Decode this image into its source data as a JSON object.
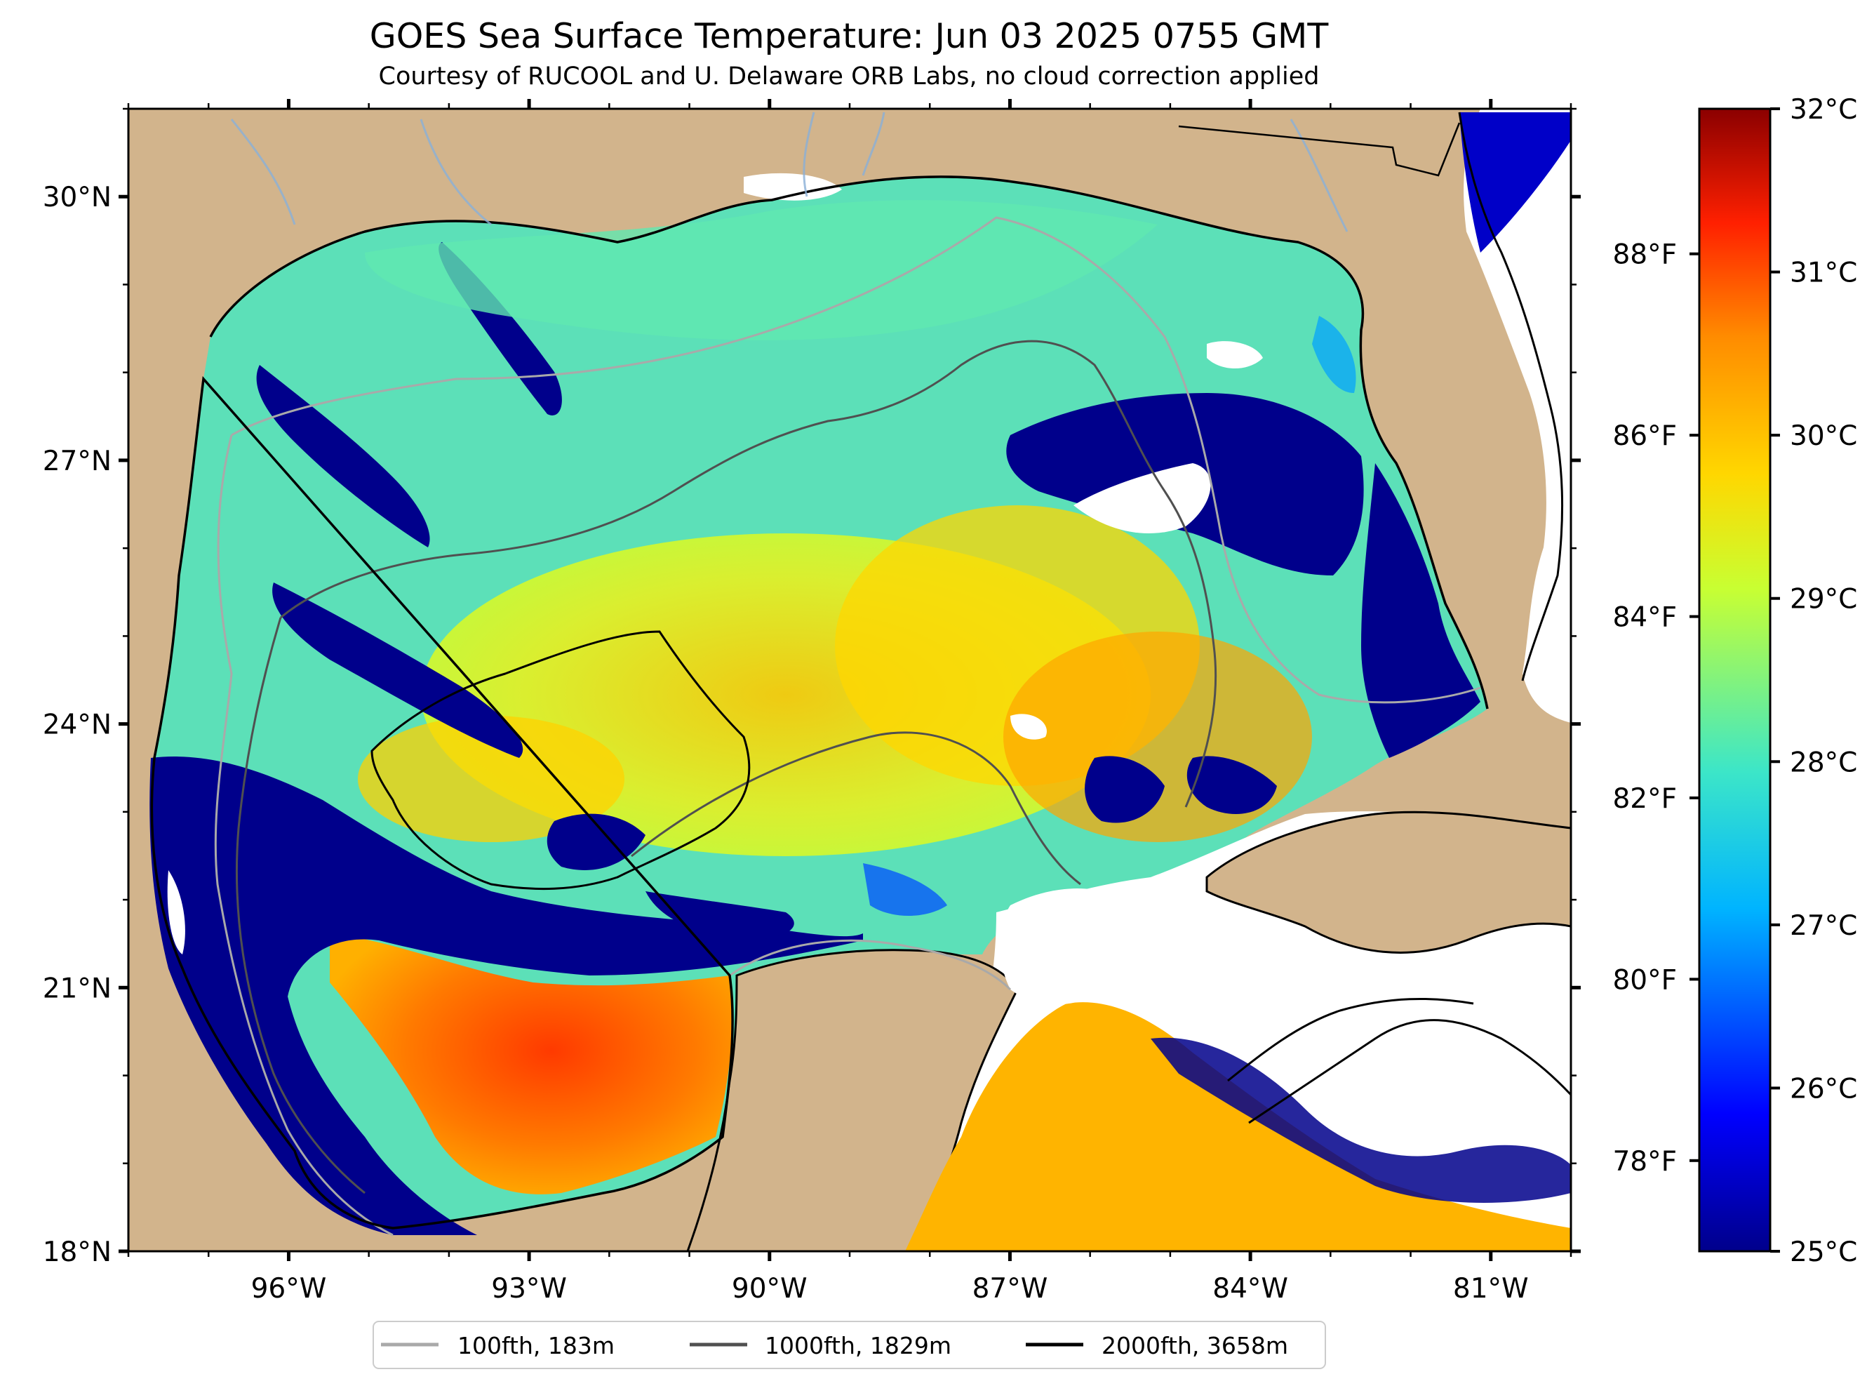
{
  "title": "GOES Sea Surface Temperature: Jun 03 2025 0755 GMT",
  "subtitle": "Courtesy of RUCOOL and U. Delaware ORB Labs, no cloud correction applied",
  "map": {
    "lon_range": [
      -98,
      -80
    ],
    "lat_range": [
      18,
      31
    ],
    "lon_ticks": [
      "96°W",
      "93°W",
      "90°W",
      "87°W",
      "84°W",
      "81°W"
    ],
    "lat_ticks": [
      "18°N",
      "21°N",
      "24°N",
      "27°N",
      "30°N"
    ],
    "land_color": "#d2b48c",
    "no_data_color": "#ffffff"
  },
  "colorbar": {
    "colormap": "jet",
    "range_c": [
      25,
      32
    ],
    "celsius_ticks": [
      "25°C",
      "26°C",
      "27°C",
      "28°C",
      "29°C",
      "30°C",
      "31°C",
      "32°C"
    ],
    "fahrenheit_ticks": [
      "78°F",
      "80°F",
      "82°F",
      "84°F",
      "86°F",
      "88°F"
    ],
    "colors": [
      "#00008b",
      "#0000ff",
      "#00b4ff",
      "#3ce6c8",
      "#c8ff32",
      "#ffd700",
      "#ff8c00",
      "#ff2000",
      "#8b0000"
    ]
  },
  "legend": {
    "items": [
      {
        "label": "100fth, 183m",
        "color": "#a9a9a9"
      },
      {
        "label": "1000fth, 1829m",
        "color": "#505050"
      },
      {
        "label": "2000fth, 3658m",
        "color": "#000000"
      }
    ]
  }
}
